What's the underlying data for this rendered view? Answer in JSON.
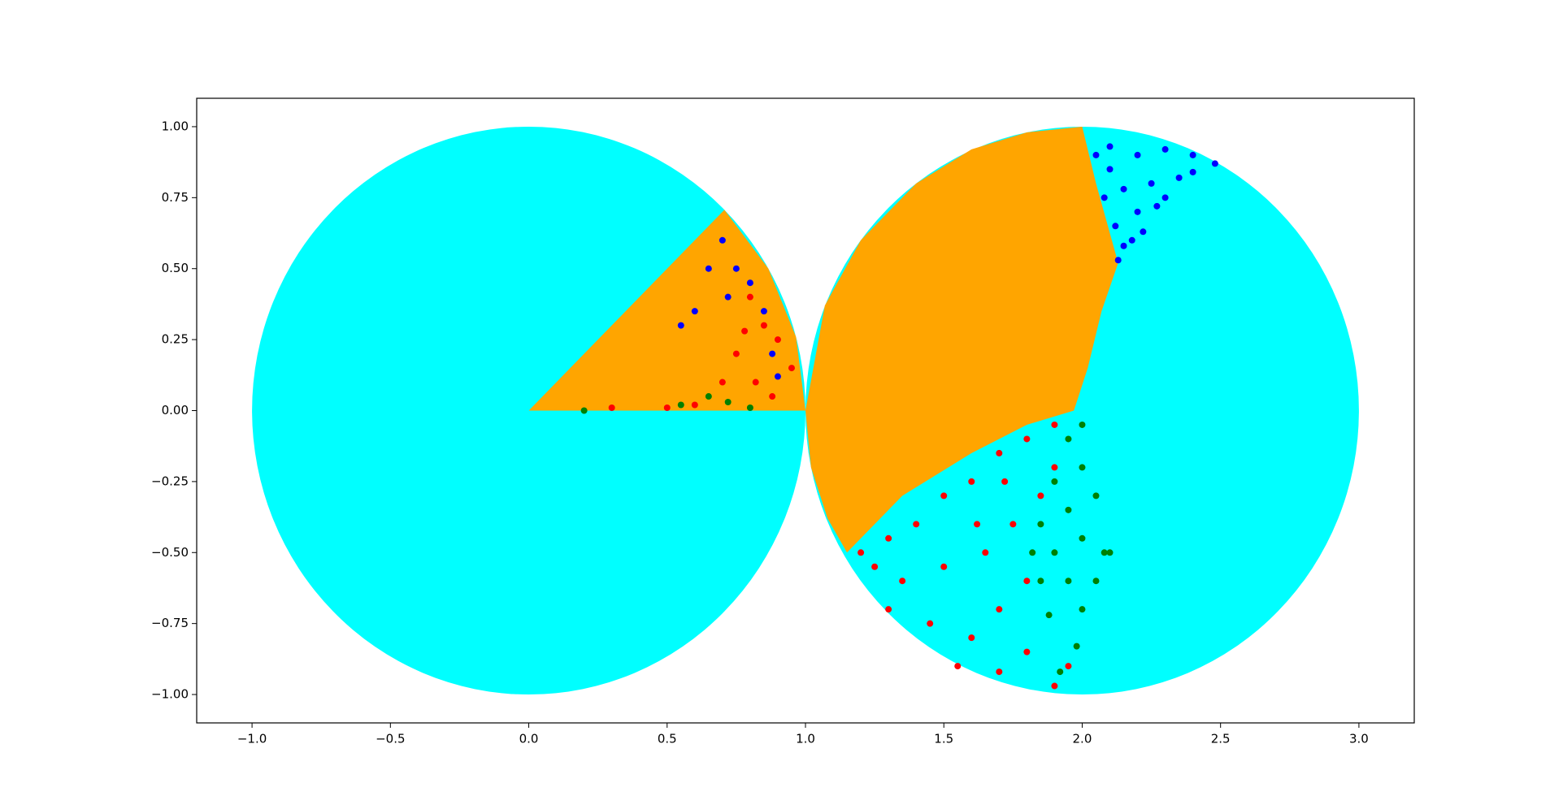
{
  "chart_data": {
    "type": "scatter",
    "xlim": [
      -1.2,
      3.2
    ],
    "ylim": [
      -1.1,
      1.1
    ],
    "xticks": [
      {
        "value": -1.0,
        "label": "−1.0"
      },
      {
        "value": -0.5,
        "label": "−0.5"
      },
      {
        "value": 0.0,
        "label": "0.0"
      },
      {
        "value": 0.5,
        "label": "0.5"
      },
      {
        "value": 1.0,
        "label": "1.0"
      },
      {
        "value": 1.5,
        "label": "1.5"
      },
      {
        "value": 2.0,
        "label": "2.0"
      },
      {
        "value": 2.5,
        "label": "2.5"
      },
      {
        "value": 3.0,
        "label": "3.0"
      }
    ],
    "yticks": [
      {
        "value": -1.0,
        "label": "−1.00"
      },
      {
        "value": -0.75,
        "label": "−0.75"
      },
      {
        "value": -0.5,
        "label": "−0.50"
      },
      {
        "value": -0.25,
        "label": "−0.25"
      },
      {
        "value": 0.0,
        "label": "0.00"
      },
      {
        "value": 0.25,
        "label": "0.25"
      },
      {
        "value": 0.5,
        "label": "0.50"
      },
      {
        "value": 0.75,
        "label": "0.75"
      },
      {
        "value": 1.0,
        "label": "1.00"
      }
    ],
    "disks": [
      {
        "color": "#00ffff",
        "cx": 0,
        "cy": 0,
        "r": 1
      },
      {
        "color": "#00ffff",
        "cx": 2,
        "cy": 0,
        "r": 1
      }
    ],
    "regions": [
      {
        "color": "#ffa500",
        "x": [
          0,
          1,
          0.966,
          0.866,
          0.707
        ],
        "y": [
          0,
          0,
          0.259,
          0.5,
          0.707
        ]
      },
      {
        "color": "#ffa500",
        "x": [
          2.0,
          1.8,
          1.6,
          1.4,
          1.2,
          1.07,
          1.0,
          1.02,
          1.08,
          1.15,
          1.35,
          1.6,
          1.8,
          1.97,
          2.02,
          2.07,
          2.13,
          2.05
        ],
        "y": [
          1.0,
          0.98,
          0.92,
          0.8,
          0.6,
          0.37,
          0,
          -0.2,
          -0.38,
          -0.5,
          -0.3,
          -0.15,
          -0.05,
          0,
          0.15,
          0.35,
          0.52,
          0.8
        ]
      }
    ],
    "series": [
      {
        "color": "#0000ff",
        "x": [
          2.05,
          2.1,
          2.2,
          2.3,
          2.4,
          2.48,
          2.08,
          2.15,
          2.25,
          2.35,
          2.12,
          2.2,
          2.3,
          2.15,
          2.22,
          2.13,
          2.18,
          2.27,
          2.1,
          2.4,
          0.65,
          0.7,
          0.75,
          0.8,
          0.85,
          0.88,
          0.6,
          0.72,
          0.9,
          0.55
        ],
        "y": [
          0.9,
          0.85,
          0.9,
          0.92,
          0.9,
          0.87,
          0.75,
          0.78,
          0.8,
          0.82,
          0.65,
          0.7,
          0.75,
          0.58,
          0.63,
          0.53,
          0.6,
          0.72,
          0.93,
          0.84,
          0.5,
          0.6,
          0.5,
          0.45,
          0.35,
          0.2,
          0.35,
          0.4,
          0.12,
          0.3
        ]
      },
      {
        "color": "#ff0000",
        "x": [
          1.2,
          1.3,
          1.4,
          1.5,
          1.6,
          1.7,
          1.8,
          1.9,
          1.35,
          1.5,
          1.65,
          1.75,
          1.85,
          1.45,
          1.6,
          1.7,
          1.8,
          1.55,
          1.7,
          1.8,
          1.9,
          1.95,
          1.62,
          1.72,
          1.9,
          1.3,
          1.25,
          0.8,
          0.85,
          0.9,
          0.75,
          0.7,
          0.6,
          0.95,
          0.82,
          0.88,
          0.5,
          0.3,
          0.78
        ],
        "y": [
          -0.5,
          -0.45,
          -0.4,
          -0.3,
          -0.25,
          -0.15,
          -0.1,
          -0.05,
          -0.6,
          -0.55,
          -0.5,
          -0.4,
          -0.3,
          -0.75,
          -0.8,
          -0.7,
          -0.6,
          -0.9,
          -0.92,
          -0.85,
          -0.97,
          -0.9,
          -0.4,
          -0.25,
          -0.2,
          -0.7,
          -0.55,
          0.4,
          0.3,
          0.25,
          0.2,
          0.1,
          0.02,
          0.15,
          0.1,
          0.05,
          0.01,
          0.01,
          0.28
        ]
      },
      {
        "color": "#008000",
        "x": [
          1.95,
          2.0,
          1.9,
          2.0,
          1.85,
          1.95,
          2.05,
          1.9,
          2.0,
          2.08,
          1.85,
          1.95,
          2.05,
          2.0,
          1.88,
          1.98,
          1.92,
          2.1,
          1.82,
          0.55,
          0.65,
          0.72,
          0.2,
          0.8
        ],
        "y": [
          -0.1,
          -0.05,
          -0.25,
          -0.2,
          -0.4,
          -0.35,
          -0.3,
          -0.5,
          -0.45,
          -0.5,
          -0.6,
          -0.6,
          -0.6,
          -0.7,
          -0.72,
          -0.83,
          -0.92,
          -0.5,
          -0.5,
          0.02,
          0.05,
          0.03,
          0.0,
          0.01
        ]
      }
    ]
  }
}
